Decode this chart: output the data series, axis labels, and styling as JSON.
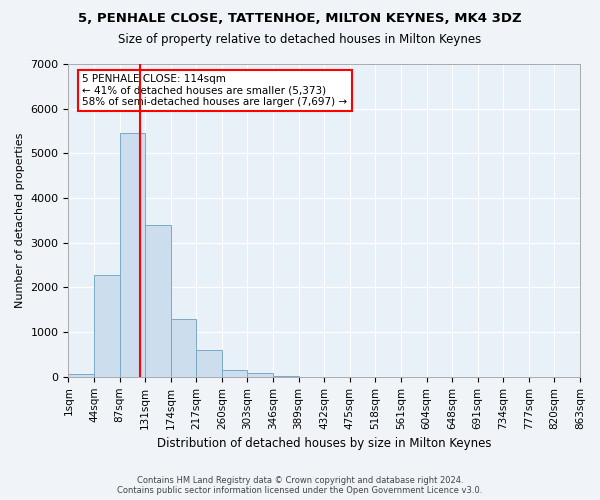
{
  "title": "5, PENHALE CLOSE, TATTENHOE, MILTON KEYNES, MK4 3DZ",
  "subtitle": "Size of property relative to detached houses in Milton Keynes",
  "xlabel": "Distribution of detached houses by size in Milton Keynes",
  "ylabel": "Number of detached properties",
  "bar_color": "#ccdded",
  "bar_edge_color": "#7aaac8",
  "background_color": "#e8f0f8",
  "grid_color": "#ffffff",
  "bin_edges": [
    "1sqm",
    "44sqm",
    "87sqm",
    "131sqm",
    "174sqm",
    "217sqm",
    "260sqm",
    "303sqm",
    "346sqm",
    "389sqm",
    "432sqm",
    "475sqm",
    "518sqm",
    "561sqm",
    "604sqm",
    "648sqm",
    "691sqm",
    "734sqm",
    "777sqm",
    "820sqm",
    "863sqm"
  ],
  "bar_heights": [
    70,
    2280,
    5450,
    3400,
    1300,
    600,
    150,
    80,
    20,
    0,
    0,
    0,
    0,
    0,
    0,
    0,
    0,
    0,
    0,
    0
  ],
  "ylim": [
    0,
    7000
  ],
  "yticks": [
    0,
    1000,
    2000,
    3000,
    4000,
    5000,
    6000,
    7000
  ],
  "property_label": "5 PENHALE CLOSE: 114sqm",
  "annotation_line1": "← 41% of detached houses are smaller (5,373)",
  "annotation_line2": "58% of semi-detached houses are larger (7,697) →",
  "vline_x": 2.3,
  "footer_line1": "Contains HM Land Registry data © Crown copyright and database right 2024.",
  "footer_line2": "Contains public sector information licensed under the Open Government Licence v3.0."
}
